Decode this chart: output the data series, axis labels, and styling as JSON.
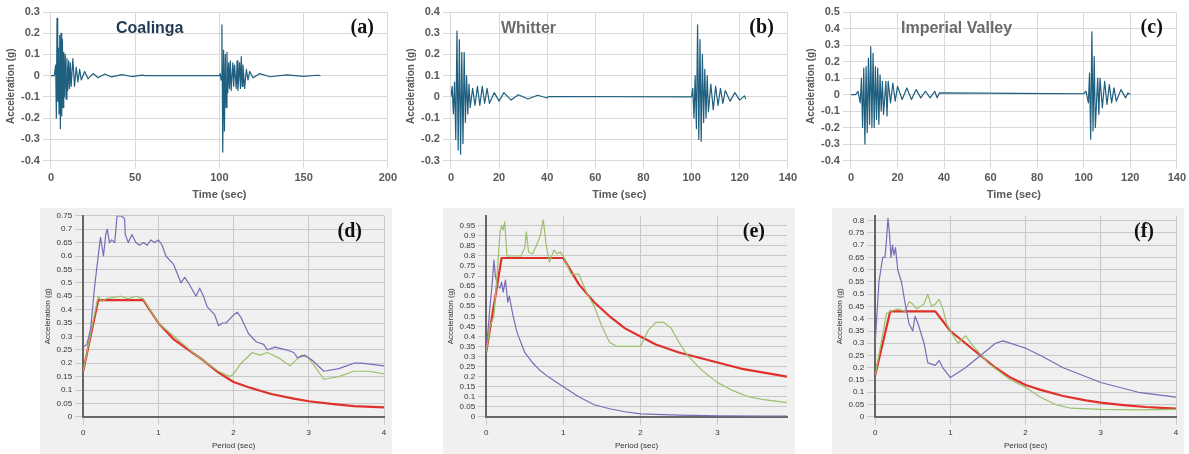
{
  "chart_data": [
    {
      "type": "line",
      "xlabel": "Time (sec)",
      "ylabel": "Acceleration (g)",
      "annotations": [
        "Coalinga",
        "(a)"
      ],
      "xlim": [
        0,
        200
      ],
      "xticks": [
        0,
        50,
        100,
        150,
        200
      ],
      "ylim": [
        -0.4,
        0.3
      ],
      "yticks": [
        -0.4,
        -0.3,
        -0.2,
        -0.1,
        0,
        0.1,
        0.2,
        0.3
      ],
      "grid": true,
      "legend": false,
      "marker": "none",
      "line_style": "solid",
      "color": "#1f5f7f",
      "x": [
        0,
        2,
        2.8,
        3.2,
        3.6,
        4,
        4.4,
        4.8,
        5.2,
        5.6,
        6,
        6.4,
        6.8,
        7.2,
        7.6,
        8,
        8.5,
        9,
        9.5,
        10,
        10.5,
        11,
        11.5,
        12,
        13,
        14,
        15,
        16,
        17,
        18,
        20,
        22,
        25,
        28,
        32,
        36,
        42,
        48,
        54,
        56,
        100,
        100.5,
        101,
        101.5,
        102,
        102.5,
        103,
        103.5,
        104,
        104.5,
        105,
        105.5,
        106,
        106.5,
        107,
        108,
        108.5,
        109,
        110,
        110.5,
        111,
        112,
        112.5,
        113,
        113.5,
        114,
        115,
        116,
        117,
        118,
        120,
        124,
        130,
        140,
        150,
        158,
        160
      ],
      "values": [
        0,
        0,
        0.05,
        -0.2,
        0.27,
        -0.12,
        0.13,
        -0.18,
        0.19,
        -0.25,
        0.2,
        -0.19,
        0.17,
        -0.15,
        0.11,
        -0.1,
        0.1,
        -0.11,
        0.08,
        -0.07,
        0.07,
        -0.06,
        0.06,
        -0.05,
        0.08,
        -0.05,
        0.04,
        -0.03,
        0.03,
        -0.02,
        0.02,
        -0.015,
        0.01,
        -0.01,
        0.008,
        -0.006,
        0.005,
        -0.004,
        0.003,
        0,
        0,
        0.01,
        -0.02,
        0.24,
        -0.36,
        0.12,
        -0.26,
        0.1,
        -0.15,
        0.11,
        -0.08,
        0.06,
        -0.06,
        0.07,
        -0.07,
        0.06,
        -0.05,
        0.05,
        -0.06,
        0.07,
        -0.07,
        0.06,
        -0.06,
        0.09,
        -0.05,
        0.05,
        -0.06,
        0.03,
        -0.02,
        0.02,
        -0.01,
        0.01,
        -0.005,
        0.004,
        -0.003,
        0.002,
        0
      ]
    },
    {
      "type": "line",
      "xlabel": "Time (sec)",
      "ylabel": "Acceleration (g)",
      "annotations": [
        "Whitter",
        "(b)"
      ],
      "xlim": [
        0,
        140
      ],
      "xticks": [
        0,
        20,
        40,
        60,
        80,
        100,
        120,
        140
      ],
      "ylim": [
        -0.3,
        0.4
      ],
      "yticks": [
        -0.3,
        -0.2,
        -0.1,
        0,
        0.1,
        0.2,
        0.3,
        0.4
      ],
      "grid": true,
      "legend": false,
      "marker": "none",
      "line_style": "solid",
      "color": "#1f5f7f",
      "x": [
        0,
        0.5,
        1,
        1.5,
        2,
        2.5,
        3,
        3.5,
        4,
        4.5,
        5,
        5.5,
        6,
        6.5,
        7,
        7.5,
        8,
        9,
        10,
        11,
        12,
        13,
        14,
        15,
        16,
        18,
        20,
        22,
        25,
        28,
        32,
        36,
        40,
        40.5,
        100,
        100.5,
        101,
        101.5,
        102,
        102.5,
        103,
        103.5,
        104,
        104.5,
        105,
        105.5,
        106,
        106.5,
        107,
        108,
        109,
        110,
        111,
        112,
        113,
        114,
        116,
        118,
        120,
        122,
        122.5
      ],
      "values": [
        0,
        0.05,
        -0.08,
        0.07,
        -0.2,
        0.31,
        -0.25,
        0.27,
        -0.27,
        0.21,
        -0.22,
        0.21,
        -0.12,
        0.1,
        -0.08,
        0.06,
        -0.05,
        0.04,
        -0.04,
        0.05,
        -0.04,
        0.05,
        -0.03,
        0.04,
        -0.03,
        0.02,
        -0.02,
        0.02,
        -0.015,
        0.01,
        -0.01,
        0.008,
        -0.005,
        0.002,
        0,
        0.04,
        -0.1,
        0.1,
        -0.15,
        0.34,
        -0.2,
        0.27,
        -0.21,
        0.2,
        -0.12,
        0.13,
        -0.1,
        0.1,
        -0.07,
        0.06,
        -0.06,
        0.05,
        -0.04,
        0.04,
        -0.03,
        0.03,
        -0.02,
        0.02,
        -0.015,
        0.005,
        -0.01
      ]
    },
    {
      "type": "line",
      "xlabel": "Time (sec)",
      "ylabel": "Acceleration (g)",
      "annotations": [
        "Imperial Valley",
        "(c)"
      ],
      "xlim": [
        0,
        140
      ],
      "xticks": [
        0,
        20,
        40,
        60,
        80,
        100,
        120,
        140
      ],
      "ylim": [
        -0.4,
        0.5
      ],
      "yticks": [
        -0.4,
        -0.3,
        -0.2,
        -0.1,
        0,
        0.1,
        0.2,
        0.3,
        0.4,
        0.5
      ],
      "grid": true,
      "legend": false,
      "marker": "none",
      "line_style": "solid",
      "color": "#1f5f7f",
      "x": [
        0,
        2,
        3,
        4,
        4.5,
        5,
        5.5,
        6,
        6.5,
        7,
        7.5,
        8,
        8.5,
        9,
        9.5,
        10,
        10.5,
        11,
        11.5,
        12,
        12.5,
        13,
        13.5,
        14,
        15,
        15.5,
        16,
        17,
        18,
        19,
        20,
        22,
        24,
        26,
        28,
        30,
        32,
        34,
        36,
        37,
        38,
        100,
        101,
        102,
        102.5,
        103,
        103.5,
        104,
        104.5,
        105,
        106,
        106.5,
        107,
        108,
        109,
        110,
        111,
        112,
        113,
        114,
        116,
        118,
        119,
        120
      ],
      "values": [
        0,
        0,
        0.02,
        -0.05,
        0.1,
        -0.2,
        0.16,
        -0.3,
        0.17,
        -0.23,
        0.22,
        -0.18,
        0.29,
        -0.2,
        0.25,
        -0.2,
        0.17,
        -0.15,
        0.16,
        -0.18,
        0.12,
        -0.1,
        0.08,
        -0.12,
        0.08,
        -0.13,
        0.08,
        -0.05,
        0.07,
        -0.04,
        0.05,
        -0.03,
        0.04,
        -0.03,
        0.03,
        -0.02,
        0.02,
        -0.02,
        0.02,
        -0.02,
        0.01,
        0.005,
        0.02,
        -0.05,
        0.13,
        -0.27,
        0.38,
        -0.22,
        0.23,
        -0.2,
        0.1,
        -0.12,
        0.1,
        -0.08,
        0.08,
        -0.06,
        0.06,
        -0.05,
        0.04,
        -0.04,
        0.03,
        -0.02,
        0.01,
        0
      ]
    },
    {
      "type": "line",
      "xlabel": "Period (sec)",
      "ylabel": "Acceleration (g)",
      "annotations": [
        "(d)"
      ],
      "xlim": [
        0,
        4
      ],
      "xticks": [
        0,
        1,
        2,
        3,
        4
      ],
      "ylim": [
        0,
        0.75
      ],
      "yticks": [
        0,
        0.05,
        0.1,
        0.15,
        0.2,
        0.25,
        0.3,
        0.35,
        0.4,
        0.45,
        0.5,
        0.55,
        0.6,
        0.65,
        0.7,
        0.75
      ],
      "grid": true,
      "legend": false,
      "marker": "none",
      "line_style": "solid",
      "series": [
        {
          "color": "#7b6bb5",
          "x": [
            0,
            0.05,
            0.1,
            0.15,
            0.2,
            0.23,
            0.27,
            0.3,
            0.32,
            0.35,
            0.38,
            0.42,
            0.45,
            0.5,
            0.55,
            0.56,
            0.6,
            0.65,
            0.7,
            0.75,
            0.8,
            0.85,
            0.9,
            0.95,
            1,
            1.05,
            1.1,
            1.2,
            1.3,
            1.35,
            1.4,
            1.5,
            1.55,
            1.6,
            1.65,
            1.75,
            1.8,
            1.85,
            1.9,
            2,
            2.05,
            2.1,
            2.2,
            2.3,
            2.4,
            2.45,
            2.55,
            2.7,
            2.8,
            2.85,
            2.95,
            3.05,
            3.2,
            3.4,
            3.6,
            3.7,
            4
          ],
          "values": [
            0.26,
            0.27,
            0.33,
            0.48,
            0.6,
            0.67,
            0.6,
            0.68,
            0.7,
            0.65,
            0.66,
            0.65,
            0.75,
            0.75,
            0.74,
            0.68,
            0.65,
            0.68,
            0.65,
            0.64,
            0.65,
            0.64,
            0.66,
            0.65,
            0.66,
            0.64,
            0.6,
            0.57,
            0.5,
            0.52,
            0.5,
            0.45,
            0.48,
            0.45,
            0.41,
            0.38,
            0.34,
            0.35,
            0.35,
            0.38,
            0.39,
            0.37,
            0.31,
            0.28,
            0.27,
            0.25,
            0.26,
            0.25,
            0.24,
            0.22,
            0.23,
            0.21,
            0.17,
            0.18,
            0.2,
            0.2,
            0.19
          ]
        },
        {
          "color": "#9cbf6b",
          "x": [
            0,
            0.2,
            0.25,
            0.3,
            0.5,
            0.6,
            0.7,
            0.8,
            1,
            1.5,
            1.8,
            1.95,
            2,
            2.1,
            2.25,
            2.35,
            2.45,
            2.6,
            2.75,
            2.9,
            3,
            3.2,
            3.4,
            3.6,
            3.8,
            4
          ],
          "values": [
            0.17,
            0.45,
            0.43,
            0.44,
            0.45,
            0.44,
            0.45,
            0.44,
            0.35,
            0.23,
            0.17,
            0.15,
            0.16,
            0.2,
            0.24,
            0.23,
            0.24,
            0.22,
            0.19,
            0.23,
            0.22,
            0.14,
            0.15,
            0.17,
            0.17,
            0.16
          ]
        },
        {
          "color": "#e0302a",
          "x": [
            0,
            0.2,
            0.8,
            1,
            1.2,
            1.4,
            1.6,
            1.8,
            2,
            2.2,
            2.5,
            2.8,
            3,
            3.3,
            3.6,
            4
          ],
          "values": [
            0.17,
            0.435,
            0.435,
            0.35,
            0.29,
            0.25,
            0.21,
            0.165,
            0.13,
            0.11,
            0.085,
            0.068,
            0.058,
            0.048,
            0.04,
            0.035
          ]
        }
      ]
    },
    {
      "type": "line",
      "xlabel": "Period (sec)",
      "ylabel": "Acceleration (g)",
      "annotations": [
        "(e)"
      ],
      "xlim": [
        0,
        3.9
      ],
      "xticks": [
        0,
        1,
        2,
        3
      ],
      "ylim": [
        0,
        1
      ],
      "yticks": [
        0,
        0.05,
        0.1,
        0.15,
        0.2,
        0.25,
        0.3,
        0.35,
        0.4,
        0.45,
        0.5,
        0.55,
        0.6,
        0.65,
        0.7,
        0.75,
        0.8,
        0.85,
        0.9,
        0.95
      ],
      "grid": true,
      "legend": false,
      "marker": "none",
      "line_style": "solid",
      "series": [
        {
          "color": "#9cbf6b",
          "x": [
            0,
            0.05,
            0.1,
            0.15,
            0.18,
            0.2,
            0.22,
            0.24,
            0.27,
            0.32,
            0.4,
            0.45,
            0.5,
            0.52,
            0.55,
            0.6,
            0.65,
            0.7,
            0.74,
            0.78,
            0.82,
            0.88,
            0.92,
            0.96,
            1,
            1.1,
            1.2,
            1.3,
            1.4,
            1.5,
            1.6,
            1.7,
            1.9,
            2,
            2.1,
            2.2,
            2.3,
            2.4,
            2.5,
            2.6,
            2.8,
            3,
            3.2,
            3.4,
            3.6,
            3.9
          ],
          "values": [
            0.32,
            0.45,
            0.5,
            0.75,
            0.92,
            0.95,
            0.93,
            0.97,
            0.8,
            0.8,
            0.8,
            0.8,
            0.84,
            0.92,
            0.82,
            0.81,
            0.85,
            0.9,
            0.98,
            0.85,
            0.77,
            0.83,
            0.81,
            0.82,
            0.8,
            0.71,
            0.71,
            0.62,
            0.55,
            0.45,
            0.37,
            0.35,
            0.35,
            0.35,
            0.43,
            0.47,
            0.47,
            0.44,
            0.37,
            0.31,
            0.23,
            0.17,
            0.13,
            0.1,
            0.085,
            0.07
          ]
        },
        {
          "color": "#7b6bb5",
          "x": [
            0,
            0.05,
            0.08,
            0.1,
            0.12,
            0.15,
            0.18,
            0.2,
            0.22,
            0.25,
            0.28,
            0.3,
            0.35,
            0.4,
            0.5,
            0.6,
            0.7,
            0.8,
            1,
            1.2,
            1.4,
            1.6,
            1.8,
            2,
            2.5,
            3,
            3.9
          ],
          "values": [
            0.32,
            0.55,
            0.67,
            0.78,
            0.7,
            0.65,
            0.64,
            0.67,
            0.62,
            0.68,
            0.57,
            0.6,
            0.5,
            0.42,
            0.32,
            0.27,
            0.23,
            0.2,
            0.15,
            0.1,
            0.06,
            0.04,
            0.025,
            0.015,
            0.008,
            0.005,
            0.003
          ]
        },
        {
          "color": "#e0302a",
          "x": [
            0,
            0.2,
            1,
            1.2,
            1.4,
            1.6,
            1.8,
            2,
            2.2,
            2.5,
            2.8,
            3,
            3.3,
            3.6,
            3.9
          ],
          "values": [
            0.32,
            0.79,
            0.79,
            0.66,
            0.57,
            0.5,
            0.44,
            0.4,
            0.36,
            0.32,
            0.29,
            0.27,
            0.24,
            0.22,
            0.2
          ]
        }
      ]
    },
    {
      "type": "line",
      "xlabel": "Period (sec)",
      "ylabel": "Acceleration (g)",
      "annotations": [
        "(f)"
      ],
      "xlim": [
        0,
        4
      ],
      "xticks": [
        0,
        1,
        2,
        3,
        4
      ],
      "ylim": [
        0,
        0.82
      ],
      "yticks": [
        0,
        0.05,
        0.1,
        0.15,
        0.2,
        0.25,
        0.3,
        0.35,
        0.4,
        0.45,
        0.5,
        0.55,
        0.6,
        0.65,
        0.7,
        0.75,
        0.8
      ],
      "grid": true,
      "legend": false,
      "marker": "none",
      "line_style": "solid",
      "series": [
        {
          "color": "#7b6bb5",
          "x": [
            0,
            0.05,
            0.1,
            0.13,
            0.15,
            0.17,
            0.19,
            0.21,
            0.23,
            0.25,
            0.27,
            0.3,
            0.35,
            0.4,
            0.45,
            0.5,
            0.53,
            0.57,
            0.6,
            0.65,
            0.7,
            0.8,
            0.85,
            0.9,
            1,
            1.2,
            1.4,
            1.6,
            1.7,
            1.9,
            2,
            2.2,
            2.5,
            3,
            3.5,
            4
          ],
          "values": [
            0.3,
            0.55,
            0.65,
            0.65,
            0.72,
            0.81,
            0.75,
            0.65,
            0.7,
            0.66,
            0.69,
            0.6,
            0.55,
            0.46,
            0.38,
            0.35,
            0.41,
            0.38,
            0.35,
            0.3,
            0.22,
            0.21,
            0.23,
            0.2,
            0.16,
            0.2,
            0.25,
            0.3,
            0.31,
            0.29,
            0.28,
            0.25,
            0.2,
            0.14,
            0.1,
            0.08
          ]
        },
        {
          "color": "#9cbf6b",
          "x": [
            0,
            0.15,
            0.2,
            0.3,
            0.4,
            0.45,
            0.5,
            0.55,
            0.6,
            0.65,
            0.7,
            0.75,
            0.8,
            0.85,
            0.9,
            0.95,
            1,
            1.1,
            1.2,
            1.3,
            1.5,
            1.8,
            2,
            2.2,
            2.4,
            2.6,
            3,
            3.5,
            4
          ],
          "values": [
            0.17,
            0.42,
            0.43,
            0.44,
            0.43,
            0.47,
            0.46,
            0.44,
            0.45,
            0.46,
            0.5,
            0.45,
            0.46,
            0.48,
            0.44,
            0.38,
            0.35,
            0.3,
            0.33,
            0.29,
            0.22,
            0.15,
            0.12,
            0.08,
            0.05,
            0.035,
            0.03,
            0.028,
            0.03
          ]
        },
        {
          "color": "#e0302a",
          "x": [
            0,
            0.2,
            0.8,
            1,
            1.2,
            1.4,
            1.6,
            1.8,
            2,
            2.2,
            2.5,
            2.8,
            3,
            3.3,
            3.6,
            4
          ],
          "values": [
            0.17,
            0.43,
            0.43,
            0.35,
            0.3,
            0.25,
            0.2,
            0.16,
            0.13,
            0.11,
            0.085,
            0.067,
            0.058,
            0.048,
            0.04,
            0.033
          ]
        }
      ]
    }
  ]
}
